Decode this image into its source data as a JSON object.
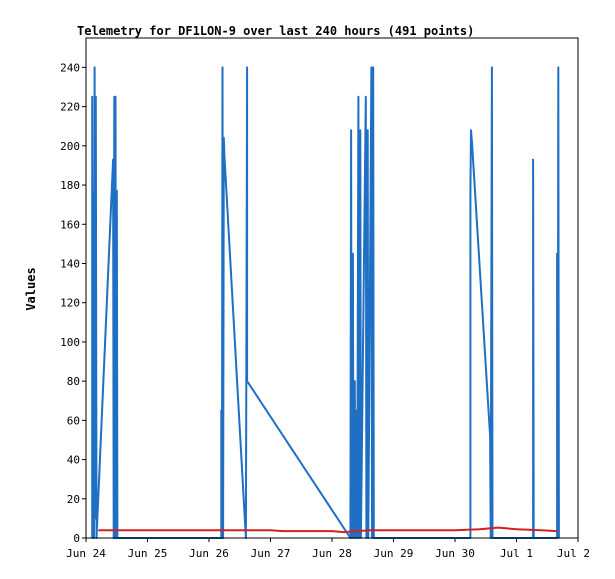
{
  "chart_data": {
    "type": "line",
    "title": "Telemetry for DF1LON-9 over last 240 hours (491 points)",
    "xlabel": "",
    "ylabel": "Values",
    "xlim": [
      0,
      8
    ],
    "ylim": [
      0,
      255
    ],
    "x_ticks": [
      {
        "pos": 0,
        "label": "Jun 24"
      },
      {
        "pos": 1,
        "label": "Jun 25"
      },
      {
        "pos": 2,
        "label": "Jun 26"
      },
      {
        "pos": 3,
        "label": "Jun 27"
      },
      {
        "pos": 4,
        "label": "Jun 28"
      },
      {
        "pos": 5,
        "label": "Jun 29"
      },
      {
        "pos": 6,
        "label": "Jun 30"
      },
      {
        "pos": 7,
        "label": "Jul 1"
      },
      {
        "pos": 8,
        "label": "Jul 2"
      }
    ],
    "y_ticks": [
      0,
      20,
      40,
      60,
      80,
      100,
      120,
      140,
      160,
      180,
      200,
      220,
      240
    ],
    "grid": false,
    "series": [
      {
        "color": "#1f6fc4",
        "points": [
          [
            0.1,
            0
          ],
          [
            0.1,
            225
          ],
          [
            0.11,
            0
          ],
          [
            0.12,
            176
          ],
          [
            0.13,
            0
          ],
          [
            0.14,
            240
          ],
          [
            0.15,
            10
          ],
          [
            0.16,
            225
          ],
          [
            0.17,
            0
          ],
          [
            0.44,
            193
          ],
          [
            0.45,
            0
          ],
          [
            0.46,
            225
          ],
          [
            0.47,
            0
          ],
          [
            0.48,
            225
          ],
          [
            0.49,
            0
          ],
          [
            0.5,
            177
          ],
          [
            0.51,
            0
          ],
          [
            2.2,
            0
          ],
          [
            2.2,
            65
          ],
          [
            2.21,
            0
          ],
          [
            2.22,
            240
          ],
          [
            2.23,
            0
          ],
          [
            2.24,
            204
          ],
          [
            2.25,
            195
          ],
          [
            2.6,
            0
          ],
          [
            2.62,
            240
          ],
          [
            2.62,
            80
          ],
          [
            4.3,
            0
          ],
          [
            4.31,
            208
          ],
          [
            4.32,
            0
          ],
          [
            4.34,
            145
          ],
          [
            4.35,
            0
          ],
          [
            4.37,
            80
          ],
          [
            4.38,
            0
          ],
          [
            4.4,
            65
          ],
          [
            4.41,
            0
          ],
          [
            4.43,
            225
          ],
          [
            4.44,
            0
          ],
          [
            4.46,
            208
          ],
          [
            4.47,
            0
          ],
          [
            4.55,
            225
          ],
          [
            4.56,
            0
          ],
          [
            4.58,
            208
          ],
          [
            4.59,
            0
          ],
          [
            4.64,
            240
          ],
          [
            4.65,
            0
          ],
          [
            4.67,
            240
          ],
          [
            4.68,
            0
          ],
          [
            6.25,
            0
          ],
          [
            6.25,
            177
          ],
          [
            6.26,
            208
          ],
          [
            6.28,
            200
          ],
          [
            6.57,
            52
          ],
          [
            6.58,
            0
          ],
          [
            6.6,
            240
          ],
          [
            6.61,
            0
          ],
          [
            7.27,
            0
          ],
          [
            7.27,
            193
          ],
          [
            7.28,
            0
          ],
          [
            7.66,
            0
          ],
          [
            7.66,
            145
          ],
          [
            7.67,
            0
          ],
          [
            7.68,
            240
          ],
          [
            7.69,
            0
          ]
        ]
      },
      {
        "color": "#d42020",
        "points": [
          [
            0.2,
            4
          ],
          [
            1.0,
            4
          ],
          [
            2.0,
            4
          ],
          [
            3.0,
            4
          ],
          [
            3.2,
            3.5
          ],
          [
            4.0,
            3.5
          ],
          [
            4.2,
            3
          ],
          [
            4.6,
            4
          ],
          [
            5.0,
            4
          ],
          [
            6.0,
            4
          ],
          [
            6.4,
            4.5
          ],
          [
            6.7,
            5.3
          ],
          [
            7.0,
            4.5
          ],
          [
            7.4,
            4
          ],
          [
            7.66,
            3.5
          ]
        ]
      }
    ]
  }
}
